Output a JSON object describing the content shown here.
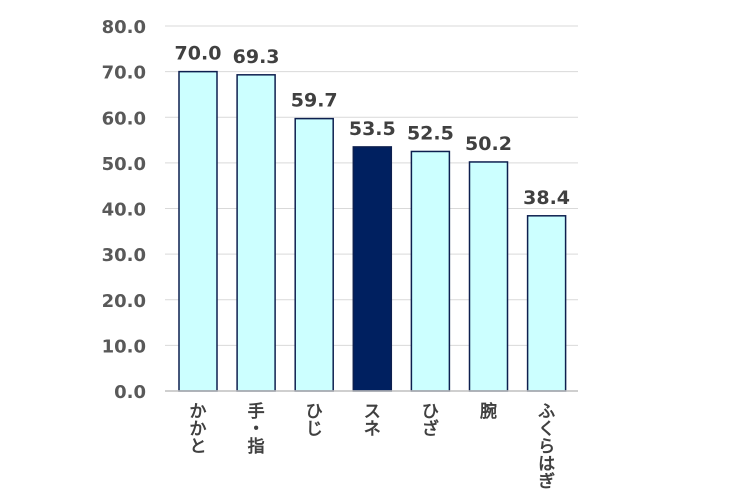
{
  "chart_data": {
    "type": "bar",
    "title": "",
    "xlabel": "",
    "ylabel": "",
    "categories": [
      "かかと",
      "手・指",
      "ひじ",
      "スネ",
      "ひざ",
      "腕",
      "ふくらはぎ"
    ],
    "values": [
      70.0,
      69.3,
      59.7,
      53.5,
      52.5,
      50.2,
      38.4
    ],
    "value_labels": [
      "70.0",
      "69.3",
      "59.7",
      "53.5",
      "52.5",
      "50.2",
      "38.4"
    ],
    "highlight_category": "スネ",
    "ylim": [
      0,
      80
    ],
    "yticks": [
      0,
      10,
      20,
      30,
      40,
      50,
      60,
      70,
      80
    ],
    "ytick_labels": [
      "0.0",
      "10.0",
      "20.0",
      "30.0",
      "40.0",
      "50.0",
      "60.0",
      "70.0",
      "80.0"
    ],
    "category_label_orientation": "vertical",
    "grid": true,
    "legend": false,
    "colors": {
      "bar_fill": "#ccffff",
      "bar_stroke": "#0d1f4f",
      "highlight_fill": "#002060",
      "grid": "#d9d9d9",
      "axis": "#bfbfbf"
    }
  }
}
